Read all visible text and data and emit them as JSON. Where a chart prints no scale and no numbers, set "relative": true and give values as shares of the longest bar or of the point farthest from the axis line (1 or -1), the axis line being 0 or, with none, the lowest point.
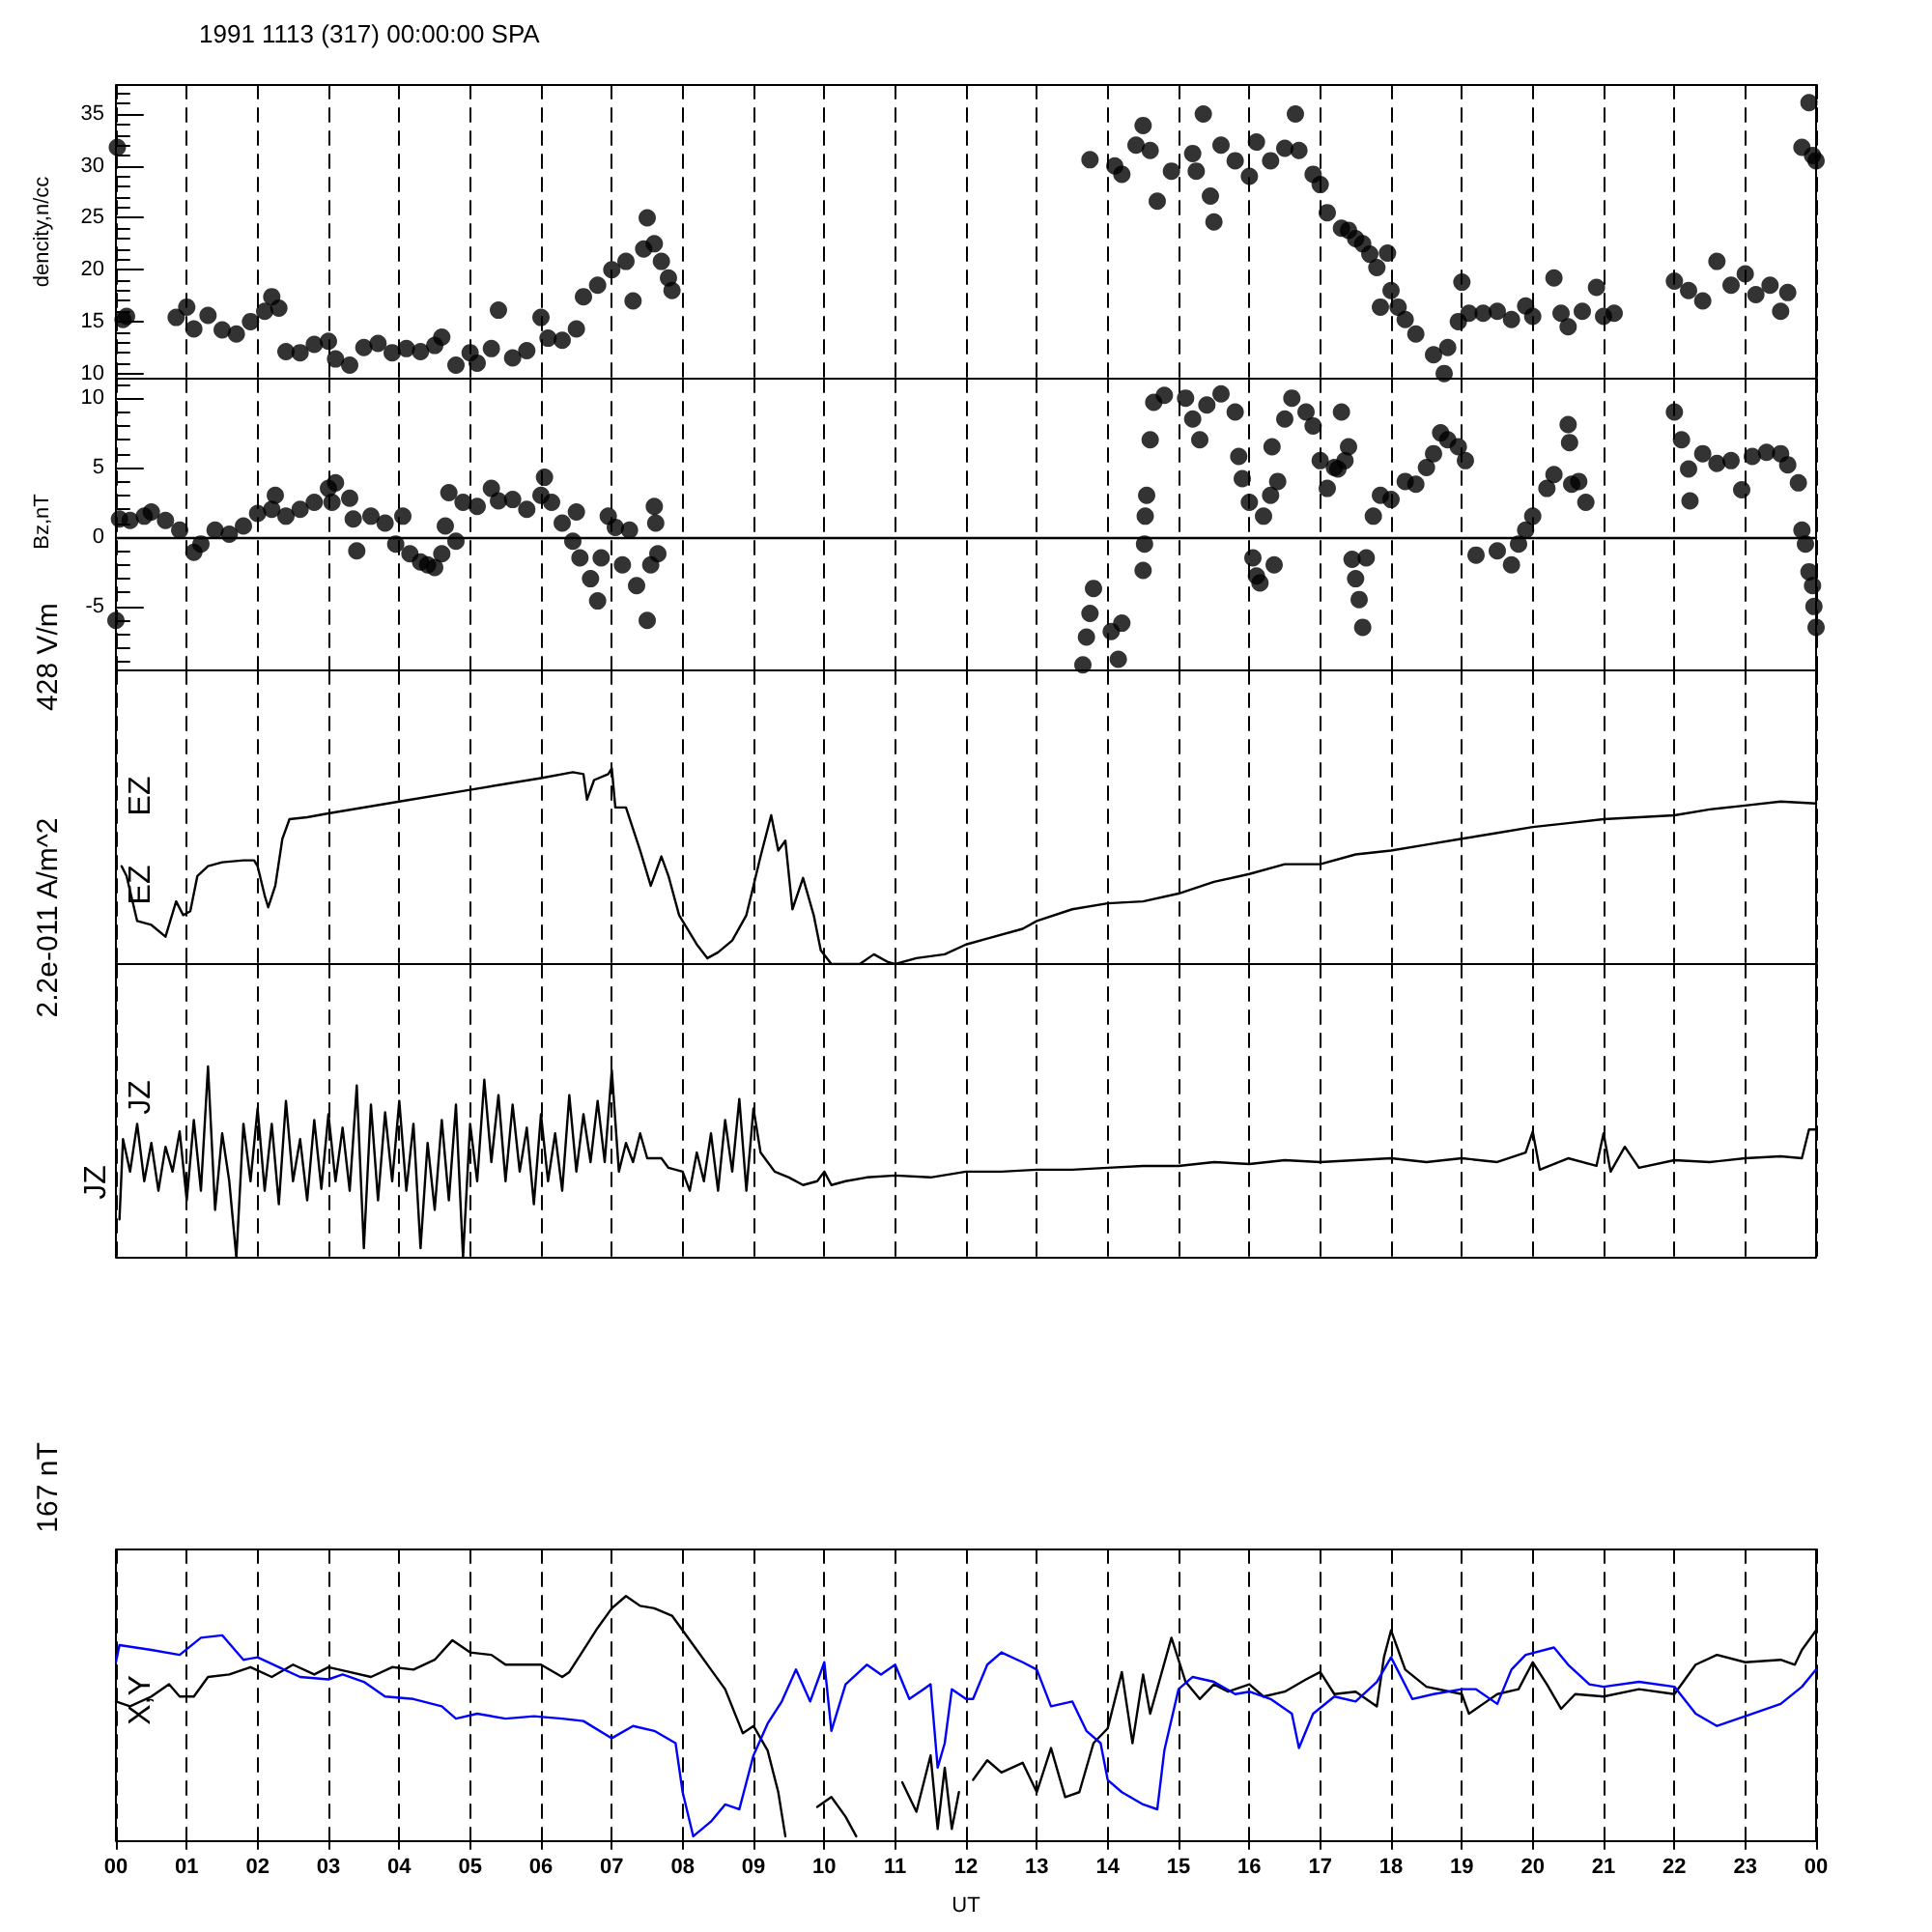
{
  "chart_data": [
    {
      "type": "scatter",
      "title": "1991 1113 (317) 00:00:00 SPA",
      "ylabel": "dencity,n/cc",
      "marker": "circle",
      "grid": "x",
      "tick_labels": "y",
      "color": "#000000",
      "xlim": [
        0,
        24
      ],
      "xticks": [
        {
          "value": 0,
          "label": null
        },
        {
          "value": 1,
          "label": null
        },
        {
          "value": 2,
          "label": null
        },
        {
          "value": 3,
          "label": null
        },
        {
          "value": 4,
          "label": null
        },
        {
          "value": 5,
          "label": null
        },
        {
          "value": 6,
          "label": null
        },
        {
          "value": 7,
          "label": null
        },
        {
          "value": 8,
          "label": null
        },
        {
          "value": 9,
          "label": null
        },
        {
          "value": 10,
          "label": null
        },
        {
          "value": 11,
          "label": null
        },
        {
          "value": 12,
          "label": null
        },
        {
          "value": 13,
          "label": null
        },
        {
          "value": 14,
          "label": null
        },
        {
          "value": 15,
          "label": null
        },
        {
          "value": 16,
          "label": null
        },
        {
          "value": 17,
          "label": null
        },
        {
          "value": 18,
          "label": null
        },
        {
          "value": 19,
          "label": null
        },
        {
          "value": 20,
          "label": null
        },
        {
          "value": 21,
          "label": null
        },
        {
          "value": 22,
          "label": null
        },
        {
          "value": 23,
          "label": null
        },
        {
          "value": 24,
          "label": null
        }
      ],
      "ylim": [
        9.5,
        37.8
      ],
      "yticks": [
        10,
        15,
        20,
        25,
        30,
        35
      ],
      "x": [
        0.02,
        0.1,
        0.15,
        0.85,
        1.0,
        1.1,
        1.3,
        1.5,
        1.7,
        1.9,
        2.1,
        2.2,
        2.3,
        2.4,
        2.6,
        2.8,
        3.0,
        3.1,
        3.3,
        3.5,
        3.7,
        3.9,
        4.1,
        4.3,
        4.5,
        4.6,
        4.8,
        5.0,
        5.1,
        5.3,
        5.4,
        5.6,
        5.8,
        6.0,
        6.1,
        6.3,
        6.5,
        6.6,
        6.8,
        7.0,
        7.2,
        7.3,
        7.45,
        7.5,
        7.6,
        7.7,
        7.8,
        7.85,
        13.75,
        14.1,
        14.2,
        14.4,
        14.5,
        14.6,
        14.7,
        14.9,
        15.2,
        15.25,
        15.35,
        15.45,
        15.5,
        15.6,
        15.8,
        16.0,
        16.1,
        16.3,
        16.5,
        16.65,
        16.7,
        16.9,
        17.0,
        17.1,
        17.3,
        17.4,
        17.5,
        17.6,
        17.7,
        17.8,
        17.85,
        17.95,
        18.0,
        18.1,
        18.2,
        18.35,
        18.6,
        18.75,
        18.8,
        18.95,
        19.0,
        19.1,
        19.3,
        19.5,
        19.7,
        19.9,
        20.0,
        20.3,
        20.4,
        20.5,
        20.7,
        20.9,
        21.0,
        21.15,
        22.0,
        22.2,
        22.4,
        22.6,
        22.8,
        23.0,
        23.15,
        23.35,
        23.5,
        23.6,
        23.8,
        23.9,
        23.95,
        24.0
      ],
      "values": [
        31.8,
        15.2,
        15.5,
        15.4,
        16.4,
        14.3,
        15.6,
        14.2,
        13.8,
        15.0,
        16.0,
        17.4,
        16.3,
        12.1,
        12.0,
        12.8,
        13.1,
        11.4,
        10.8,
        12.5,
        12.9,
        12.0,
        12.4,
        12.1,
        12.7,
        13.5,
        10.8,
        12.0,
        11.0,
        12.4,
        16.1,
        11.5,
        12.2,
        15.4,
        13.4,
        13.2,
        14.3,
        17.4,
        18.5,
        20.0,
        20.8,
        17.0,
        22.0,
        25.0,
        22.5,
        20.8,
        19.2,
        18.0,
        30.6,
        30.0,
        29.2,
        32.0,
        33.9,
        31.5,
        26.6,
        29.5,
        31.2,
        29.5,
        35.0,
        27.1,
        24.6,
        32.0,
        30.5,
        29.0,
        32.3,
        30.5,
        31.7,
        35.0,
        31.5,
        29.2,
        28.2,
        25.5,
        24.0,
        23.8,
        23.0,
        22.5,
        21.5,
        20.2,
        16.4,
        21.6,
        18.0,
        16.4,
        15.2,
        13.8,
        11.8,
        10.0,
        12.5,
        15.0,
        18.8,
        15.8,
        15.8,
        16.0,
        15.2,
        16.5,
        15.5,
        19.2,
        15.8,
        14.5,
        16.0,
        18.3,
        15.5,
        15.8,
        18.9,
        18.0,
        17.0,
        20.8,
        18.5,
        19.6,
        17.6,
        18.5,
        16.0,
        17.8,
        31.8,
        36.1,
        31.0,
        30.5
      ]
    },
    {
      "type": "scatter",
      "ylabel": "Bz,nT",
      "marker": "circle",
      "grid": "x",
      "tick_labels": "y",
      "color": "#000000",
      "xlim": [
        0,
        24
      ],
      "xticks": [
        {
          "value": 0,
          "label": null
        },
        {
          "value": 1,
          "label": null
        },
        {
          "value": 2,
          "label": null
        },
        {
          "value": 3,
          "label": null
        },
        {
          "value": 4,
          "label": null
        },
        {
          "value": 5,
          "label": null
        },
        {
          "value": 6,
          "label": null
        },
        {
          "value": 7,
          "label": null
        },
        {
          "value": 8,
          "label": null
        },
        {
          "value": 9,
          "label": null
        },
        {
          "value": 10,
          "label": null
        },
        {
          "value": 11,
          "label": null
        },
        {
          "value": 12,
          "label": null
        },
        {
          "value": 13,
          "label": null
        },
        {
          "value": 14,
          "label": null
        },
        {
          "value": 15,
          "label": null
        },
        {
          "value": 16,
          "label": null
        },
        {
          "value": 17,
          "label": null
        },
        {
          "value": 18,
          "label": null
        },
        {
          "value": 19,
          "label": null
        },
        {
          "value": 20,
          "label": null
        },
        {
          "value": 21,
          "label": null
        },
        {
          "value": 22,
          "label": null
        },
        {
          "value": 23,
          "label": null
        },
        {
          "value": 24,
          "label": null
        }
      ],
      "ylim": [
        -9.6,
        11.4
      ],
      "yticks": [
        -5,
        0,
        5,
        10
      ],
      "ref_lines": [
        {
          "axis": "y",
          "value": 0
        }
      ],
      "x": [
        0.0,
        0.05,
        0.2,
        0.4,
        0.5,
        0.7,
        0.9,
        1.1,
        1.2,
        1.4,
        1.6,
        1.8,
        2.0,
        2.2,
        2.25,
        2.4,
        2.6,
        2.8,
        3.0,
        3.05,
        3.1,
        3.3,
        3.35,
        3.4,
        3.6,
        3.8,
        3.95,
        4.05,
        4.15,
        4.3,
        4.4,
        4.5,
        4.6,
        4.65,
        4.7,
        4.8,
        4.9,
        5.1,
        5.3,
        5.4,
        5.6,
        5.8,
        6.0,
        6.05,
        6.15,
        6.3,
        6.45,
        6.5,
        6.55,
        6.7,
        6.8,
        6.85,
        6.95,
        7.05,
        7.15,
        7.25,
        7.35,
        7.5,
        7.55,
        7.6,
        7.62,
        7.65,
        13.65,
        13.7,
        13.75,
        13.8,
        14.05,
        14.15,
        14.2,
        14.5,
        14.52,
        14.53,
        14.55,
        14.6,
        14.65,
        14.8,
        15.1,
        15.2,
        15.3,
        15.4,
        15.6,
        15.8,
        15.85,
        15.9,
        16.0,
        16.05,
        16.1,
        16.15,
        16.2,
        16.3,
        16.32,
        16.35,
        16.4,
        16.5,
        16.6,
        16.8,
        16.9,
        17.0,
        17.1,
        17.2,
        17.25,
        17.3,
        17.35,
        17.4,
        17.45,
        17.5,
        17.55,
        17.6,
        17.65,
        17.75,
        17.85,
        18.0,
        18.2,
        18.35,
        18.5,
        18.6,
        18.7,
        18.8,
        18.95,
        19.05,
        19.2,
        19.5,
        19.7,
        19.8,
        19.9,
        20.0,
        20.2,
        20.3,
        20.5,
        20.52,
        20.55,
        20.65,
        20.75,
        22.0,
        22.1,
        22.2,
        22.22,
        22.4,
        22.6,
        22.8,
        22.95,
        23.1,
        23.3,
        23.5,
        23.6,
        23.75,
        23.8,
        23.85,
        23.9,
        23.95,
        23.97,
        24.0
      ],
      "values": [
        -6.0,
        1.3,
        1.2,
        1.5,
        1.8,
        1.2,
        0.5,
        -1.1,
        -0.5,
        0.5,
        0.2,
        0.8,
        1.7,
        2.0,
        3.0,
        1.5,
        2.0,
        2.5,
        3.5,
        2.5,
        3.9,
        2.8,
        1.3,
        -1.0,
        1.5,
        1.0,
        -0.5,
        1.5,
        -1.2,
        -1.8,
        -2.0,
        -2.2,
        -1.2,
        0.8,
        3.2,
        -0.3,
        2.5,
        2.2,
        3.5,
        2.6,
        2.7,
        2.0,
        3.0,
        4.3,
        2.5,
        1.0,
        -0.3,
        1.8,
        -1.5,
        -3.0,
        -4.6,
        -1.5,
        1.5,
        0.7,
        -2.0,
        0.5,
        -3.5,
        -6.0,
        -2.0,
        2.2,
        1.0,
        -1.2,
        -9.2,
        -7.2,
        -5.5,
        -3.7,
        -6.8,
        -8.8,
        -6.2,
        -2.4,
        -0.5,
        1.5,
        3.0,
        7.0,
        9.7,
        10.2,
        10.0,
        8.5,
        7.0,
        9.5,
        10.3,
        9.0,
        5.8,
        4.2,
        2.5,
        -1.5,
        -2.8,
        -3.3,
        1.5,
        3.0,
        6.5,
        -2.0,
        4.0,
        8.5,
        10.0,
        9.0,
        8.0,
        5.5,
        3.5,
        5.0,
        4.9,
        9.0,
        5.5,
        6.5,
        -1.6,
        -3.0,
        -4.5,
        -6.5,
        -1.5,
        1.5,
        3.0,
        2.7,
        4.0,
        3.8,
        5.0,
        6.0,
        7.5,
        7.0,
        6.5,
        5.5,
        -1.3,
        -1.0,
        -2.0,
        -0.5,
        0.5,
        1.5,
        3.5,
        4.5,
        8.1,
        6.8,
        3.8,
        4.0,
        2.5,
        9.0,
        7.0,
        4.9,
        2.6,
        6.0,
        5.3,
        5.5,
        3.4,
        5.8,
        6.1,
        6.0,
        5.2,
        3.9,
        0.5,
        -0.5,
        -2.5,
        -3.5,
        -5.0,
        -6.5
      ]
    },
    {
      "type": "line",
      "ylabel": "428 V/m",
      "relative": true,
      "marker": "none",
      "line_style": "solid",
      "grid": "x",
      "tick_labels": false,
      "annotations": [
        "EZ"
      ],
      "xlim": [
        0,
        24
      ],
      "xticks": [
        {
          "value": 0,
          "label": null
        },
        {
          "value": 1,
          "label": null
        },
        {
          "value": 2,
          "label": null
        },
        {
          "value": 3,
          "label": null
        },
        {
          "value": 4,
          "label": null
        },
        {
          "value": 5,
          "label": null
        },
        {
          "value": 6,
          "label": null
        },
        {
          "value": 7,
          "label": null
        },
        {
          "value": 8,
          "label": null
        },
        {
          "value": 9,
          "label": null
        },
        {
          "value": 10,
          "label": null
        },
        {
          "value": 11,
          "label": null
        },
        {
          "value": 12,
          "label": null
        },
        {
          "value": 13,
          "label": null
        },
        {
          "value": 14,
          "label": null
        },
        {
          "value": 15,
          "label": null
        },
        {
          "value": 16,
          "label": null
        },
        {
          "value": 17,
          "label": null
        },
        {
          "value": 18,
          "label": null
        },
        {
          "value": 19,
          "label": null
        },
        {
          "value": 20,
          "label": null
        },
        {
          "value": 21,
          "label": null
        },
        {
          "value": 22,
          "label": null
        },
        {
          "value": 23,
          "label": null
        },
        {
          "value": 24,
          "label": null
        }
      ],
      "series": [
        {
          "name": "EZ",
          "color": "#000000",
          "x": [
            0.08,
            0.15,
            0.3,
            0.5,
            0.7,
            0.85,
            0.95,
            1.05,
            1.15,
            1.3,
            1.5,
            1.8,
            1.95,
            2.0,
            2.1,
            2.15,
            2.25,
            2.35,
            2.45,
            2.7,
            3.0,
            4.0,
            5.0,
            6.0,
            6.45,
            6.6,
            6.65,
            6.75,
            6.95,
            7.0,
            7.05,
            7.2,
            7.4,
            7.55,
            7.7,
            7.8,
            7.95,
            8.2,
            8.35,
            8.5,
            8.7,
            8.9,
            9.0,
            9.1,
            9.25,
            9.35,
            9.45,
            9.55,
            9.7,
            9.85,
            9.95,
            10.1,
            10.5,
            10.7,
            10.9,
            11.0,
            11.3,
            11.7,
            12.0,
            12.3,
            12.8,
            13.0,
            13.5,
            14.0,
            14.5,
            15.0,
            15.5,
            16.0,
            16.5,
            17.0,
            17.5,
            18.0,
            18.5,
            19.0,
            19.5,
            20.0,
            20.5,
            21.0,
            21.5,
            22.0,
            22.5,
            23.0,
            23.5,
            24.0
          ],
          "values": [
            0.5,
            0.45,
            0.22,
            0.2,
            0.14,
            0.32,
            0.25,
            0.27,
            0.45,
            0.5,
            0.52,
            0.53,
            0.53,
            0.5,
            0.35,
            0.29,
            0.4,
            0.64,
            0.74,
            0.75,
            0.77,
            0.83,
            0.89,
            0.95,
            0.98,
            0.97,
            0.84,
            0.94,
            0.97,
            1.0,
            0.8,
            0.8,
            0.58,
            0.4,
            0.55,
            0.45,
            0.25,
            0.1,
            0.03,
            0.06,
            0.12,
            0.25,
            0.4,
            0.55,
            0.76,
            0.58,
            0.63,
            0.28,
            0.44,
            0.25,
            0.07,
            0.0,
            0.0,
            0.05,
            0.01,
            0.0,
            0.03,
            0.05,
            0.1,
            0.13,
            0.18,
            0.22,
            0.28,
            0.31,
            0.32,
            0.36,
            0.42,
            0.46,
            0.51,
            0.51,
            0.56,
            0.58,
            0.61,
            0.64,
            0.67,
            0.7,
            0.72,
            0.74,
            0.75,
            0.76,
            0.79,
            0.81,
            0.83,
            0.82
          ]
        }
      ]
    },
    {
      "type": "line",
      "ylabel": "2.2e-011 A/m^2",
      "relative": true,
      "marker": "none",
      "line_style": "solid",
      "grid": "x",
      "tick_labels": false,
      "annotations": [
        "JZ"
      ],
      "xlim": [
        0,
        24
      ],
      "xticks": [
        {
          "value": 0,
          "label": null
        },
        {
          "value": 1,
          "label": null
        },
        {
          "value": 2,
          "label": null
        },
        {
          "value": 3,
          "label": null
        },
        {
          "value": 4,
          "label": null
        },
        {
          "value": 5,
          "label": null
        },
        {
          "value": 6,
          "label": null
        },
        {
          "value": 7,
          "label": null
        },
        {
          "value": 8,
          "label": null
        },
        {
          "value": 9,
          "label": null
        },
        {
          "value": 10,
          "label": null
        },
        {
          "value": 11,
          "label": null
        },
        {
          "value": 12,
          "label": null
        },
        {
          "value": 13,
          "label": null
        },
        {
          "value": 14,
          "label": null
        },
        {
          "value": 15,
          "label": null
        },
        {
          "value": 16,
          "label": null
        },
        {
          "value": 17,
          "label": null
        },
        {
          "value": 18,
          "label": null
        },
        {
          "value": 19,
          "label": null
        },
        {
          "value": 20,
          "label": null
        },
        {
          "value": 21,
          "label": null
        },
        {
          "value": 22,
          "label": null
        },
        {
          "value": 23,
          "label": null
        },
        {
          "value": 24,
          "label": null
        }
      ],
      "series": [
        {
          "name": "JZ",
          "color": "#000000",
          "x": [
            0.05,
            0.1,
            0.2,
            0.3,
            0.4,
            0.5,
            0.6,
            0.7,
            0.8,
            0.9,
            1.0,
            1.1,
            1.2,
            1.3,
            1.4,
            1.5,
            1.6,
            1.7,
            1.8,
            1.9,
            2.0,
            2.1,
            2.2,
            2.3,
            2.4,
            2.5,
            2.6,
            2.7,
            2.8,
            2.9,
            3.0,
            3.1,
            3.2,
            3.3,
            3.4,
            3.5,
            3.6,
            3.7,
            3.8,
            3.9,
            4.0,
            4.1,
            4.2,
            4.3,
            4.4,
            4.5,
            4.6,
            4.7,
            4.8,
            4.9,
            5.0,
            5.1,
            5.2,
            5.3,
            5.4,
            5.5,
            5.6,
            5.7,
            5.8,
            5.9,
            6.0,
            6.1,
            6.2,
            6.3,
            6.4,
            6.5,
            6.6,
            6.7,
            6.8,
            6.9,
            7.0,
            7.1,
            7.2,
            7.3,
            7.4,
            7.5,
            7.7,
            7.8,
            8.0,
            8.1,
            8.2,
            8.3,
            8.4,
            8.5,
            8.6,
            8.7,
            8.8,
            8.9,
            9.0,
            9.1,
            9.2,
            9.3,
            9.5,
            9.7,
            9.9,
            10.0,
            10.1,
            10.3,
            10.6,
            11.0,
            11.5,
            12.0,
            12.5,
            13.0,
            13.5,
            14.0,
            14.5,
            15.0,
            15.5,
            16.0,
            16.5,
            17.0,
            17.5,
            18.0,
            18.5,
            19.0,
            19.5,
            19.9,
            20.0,
            20.1,
            20.5,
            20.9,
            21.0,
            21.1,
            21.3,
            21.5,
            22.0,
            22.5,
            23.0,
            23.5,
            23.8,
            23.9,
            24.0
          ],
          "values": [
            0.2,
            0.62,
            0.45,
            0.7,
            0.4,
            0.6,
            0.35,
            0.58,
            0.45,
            0.66,
            0.3,
            0.72,
            0.35,
            1.0,
            0.25,
            0.65,
            0.4,
            0.0,
            0.7,
            0.4,
            0.78,
            0.35,
            0.7,
            0.28,
            0.82,
            0.4,
            0.62,
            0.3,
            0.72,
            0.36,
            0.75,
            0.4,
            0.68,
            0.35,
            0.9,
            0.05,
            0.8,
            0.3,
            0.76,
            0.4,
            0.82,
            0.35,
            0.7,
            0.05,
            0.6,
            0.25,
            0.72,
            0.3,
            0.8,
            0.0,
            0.7,
            0.4,
            0.93,
            0.5,
            0.85,
            0.4,
            0.8,
            0.45,
            0.68,
            0.28,
            0.75,
            0.4,
            0.65,
            0.35,
            0.85,
            0.45,
            0.75,
            0.5,
            0.82,
            0.5,
            0.98,
            0.45,
            0.6,
            0.5,
            0.65,
            0.52,
            0.52,
            0.47,
            0.45,
            0.35,
            0.55,
            0.4,
            0.65,
            0.35,
            0.72,
            0.45,
            0.83,
            0.35,
            0.78,
            0.55,
            0.5,
            0.45,
            0.42,
            0.38,
            0.4,
            0.45,
            0.38,
            0.4,
            0.42,
            0.43,
            0.42,
            0.45,
            0.45,
            0.46,
            0.46,
            0.47,
            0.48,
            0.48,
            0.5,
            0.49,
            0.51,
            0.5,
            0.51,
            0.52,
            0.5,
            0.52,
            0.5,
            0.55,
            0.66,
            0.46,
            0.52,
            0.48,
            0.65,
            0.45,
            0.58,
            0.47,
            0.51,
            0.5,
            0.52,
            0.53,
            0.52,
            0.67,
            0.67
          ]
        }
      ]
    },
    {
      "type": "line",
      "ylabel": "167 nT",
      "xlabel": "UT",
      "relative": true,
      "marker": "none",
      "line_style": "solid",
      "grid": "x",
      "tick_labels": "x",
      "annotations": [
        "X,Y"
      ],
      "xlim": [
        0,
        24
      ],
      "xticks": [
        {
          "value": 0,
          "label": "00"
        },
        {
          "value": 1,
          "label": "01"
        },
        {
          "value": 2,
          "label": "02"
        },
        {
          "value": 3,
          "label": "03"
        },
        {
          "value": 4,
          "label": "04"
        },
        {
          "value": 5,
          "label": "05"
        },
        {
          "value": 6,
          "label": "06"
        },
        {
          "value": 7,
          "label": "07"
        },
        {
          "value": 8,
          "label": "08"
        },
        {
          "value": 9,
          "label": "09"
        },
        {
          "value": 10,
          "label": "10"
        },
        {
          "value": 11,
          "label": "11"
        },
        {
          "value": 12,
          "label": "12"
        },
        {
          "value": 13,
          "label": "13"
        },
        {
          "value": 14,
          "label": "14"
        },
        {
          "value": 15,
          "label": "15"
        },
        {
          "value": 16,
          "label": "16"
        },
        {
          "value": 17,
          "label": "17"
        },
        {
          "value": 18,
          "label": "18"
        },
        {
          "value": 19,
          "label": "19"
        },
        {
          "value": 20,
          "label": "20"
        },
        {
          "value": 21,
          "label": "21"
        },
        {
          "value": 22,
          "label": "22"
        },
        {
          "value": 23,
          "label": "23"
        },
        {
          "value": 24,
          "label": "00"
        }
      ],
      "series": [
        {
          "color": "#000000",
          "x": [
            0.0,
            0.2,
            0.5,
            0.75,
            0.9,
            1.1,
            1.3,
            1.6,
            1.9,
            2.2,
            2.5,
            2.8,
            3.0,
            3.3,
            3.6,
            3.9,
            4.2,
            4.5,
            4.75,
            5.0,
            5.3,
            5.5,
            6.0,
            6.3,
            6.4,
            6.6,
            6.8,
            7.0,
            7.2,
            7.4,
            7.6,
            7.85,
            8.0,
            8.2,
            8.4,
            8.6,
            8.85,
            9.0,
            9.2,
            9.35,
            9.45,
            9.7,
            9.9,
            10.1,
            10.3,
            10.45,
            10.8,
            11.1,
            11.3,
            11.5,
            11.6,
            11.7,
            11.8,
            11.9,
            12.0,
            12.1,
            12.3,
            12.5,
            12.8,
            13.0,
            13.2,
            13.4,
            13.6,
            13.8,
            14.0,
            14.2,
            14.35,
            14.5,
            14.6,
            14.9,
            15.1,
            15.3,
            15.5,
            15.7,
            16.0,
            16.2,
            16.5,
            16.8,
            17.0,
            17.2,
            17.5,
            17.8,
            17.9,
            18.0,
            18.2,
            18.5,
            19.0,
            19.1,
            19.3,
            19.5,
            19.8,
            20.0,
            20.2,
            20.4,
            20.6,
            21.0,
            21.5,
            22.0,
            22.3,
            22.6,
            23.0,
            23.5,
            23.7,
            23.8,
            24.0
          ],
          "values": [
            0.57,
            0.55,
            0.59,
            0.64,
            0.59,
            0.59,
            0.67,
            0.68,
            0.71,
            0.67,
            0.72,
            0.68,
            0.71,
            0.69,
            0.67,
            0.71,
            0.7,
            0.74,
            0.82,
            0.77,
            0.76,
            0.72,
            0.72,
            0.67,
            0.69,
            0.78,
            0.87,
            0.95,
            1.0,
            0.96,
            0.95,
            0.92,
            0.86,
            0.78,
            0.7,
            0.62,
            0.44,
            0.47,
            0.37,
            0.2,
            0.02,
            null,
            0.14,
            0.18,
            0.1,
            0.02,
            null,
            0.24,
            0.12,
            0.35,
            0.05,
            0.3,
            0.05,
            0.2,
            null,
            0.25,
            0.33,
            0.28,
            0.32,
            0.2,
            0.38,
            0.18,
            0.2,
            0.4,
            0.46,
            0.69,
            0.4,
            0.68,
            0.52,
            0.83,
            0.65,
            0.58,
            0.64,
            0.61,
            0.64,
            0.59,
            0.61,
            0.66,
            0.69,
            0.6,
            0.61,
            0.55,
            0.75,
            0.86,
            0.7,
            0.63,
            0.6,
            0.52,
            0.56,
            0.6,
            0.62,
            0.73,
            0.64,
            0.54,
            0.6,
            0.59,
            0.62,
            0.6,
            0.72,
            0.76,
            0.73,
            0.74,
            0.72,
            0.78,
            0.86
          ]
        },
        {
          "color": "#0000ff",
          "x": [
            0.0,
            0.05,
            0.5,
            0.9,
            1.2,
            1.5,
            1.8,
            2.0,
            2.3,
            2.6,
            3.0,
            3.2,
            3.5,
            3.8,
            4.2,
            4.6,
            4.8,
            5.1,
            5.5,
            5.9,
            6.3,
            6.6,
            7.0,
            7.3,
            7.6,
            7.9,
            8.0,
            8.15,
            8.4,
            8.6,
            8.8,
            9.0,
            9.2,
            9.4,
            9.6,
            9.8,
            10.0,
            10.1,
            10.3,
            10.6,
            10.8,
            11.0,
            11.2,
            11.4,
            11.5,
            11.6,
            11.7,
            11.8,
            12.0,
            12.1,
            12.3,
            12.5,
            12.8,
            13.0,
            13.2,
            13.5,
            13.7,
            13.9,
            14.0,
            14.2,
            14.5,
            14.7,
            14.8,
            15.0,
            15.2,
            15.5,
            15.8,
            16.0,
            16.3,
            16.6,
            16.7,
            16.9,
            17.2,
            17.5,
            17.8,
            18.0,
            18.3,
            18.6,
            19.0,
            19.2,
            19.5,
            19.7,
            19.9,
            20.3,
            20.5,
            20.8,
            21.0,
            21.5,
            22.0,
            22.3,
            22.6,
            23.0,
            23.5,
            23.8,
            24.0
          ],
          "values": [
            0.73,
            0.8,
            0.78,
            0.76,
            0.83,
            0.84,
            0.74,
            0.75,
            0.71,
            0.67,
            0.66,
            0.68,
            0.65,
            0.59,
            0.58,
            0.55,
            0.5,
            0.52,
            0.5,
            0.51,
            0.5,
            0.49,
            0.42,
            0.47,
            0.45,
            0.4,
            0.2,
            0.02,
            0.08,
            0.15,
            0.13,
            0.35,
            0.48,
            0.57,
            0.7,
            0.57,
            0.73,
            0.45,
            0.64,
            0.72,
            0.68,
            0.72,
            0.58,
            0.62,
            0.64,
            0.3,
            0.4,
            0.62,
            0.58,
            0.58,
            0.72,
            0.77,
            0.73,
            0.7,
            0.55,
            0.57,
            0.45,
            0.4,
            0.25,
            0.2,
            0.15,
            0.13,
            0.37,
            0.62,
            0.67,
            0.65,
            0.6,
            0.61,
            0.58,
            0.52,
            0.38,
            0.52,
            0.59,
            0.57,
            0.65,
            0.75,
            0.58,
            0.6,
            0.62,
            0.62,
            0.56,
            0.7,
            0.76,
            0.79,
            0.72,
            0.64,
            0.63,
            0.65,
            0.63,
            0.52,
            0.47,
            0.51,
            0.56,
            0.63,
            0.7
          ]
        }
      ]
    }
  ]
}
